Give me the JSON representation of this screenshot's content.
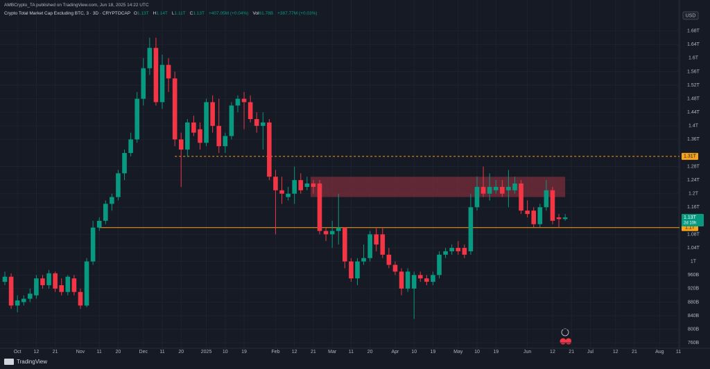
{
  "header": {
    "publisher": "AMBCrypto_TA published on TradingView.com, Jun 18, 2025 14:22 UTC",
    "symbol": "Crypto Total Market Cap Excluding BTC, 3 · 3D · CRYPTOCAP",
    "legend": [
      {
        "label": "O",
        "value": "1.13T"
      },
      {
        "label": "H",
        "value": "1.14T"
      },
      {
        "label": "L",
        "value": "1.11T"
      },
      {
        "label": "C",
        "value": "1.13T"
      },
      {
        "label": "",
        "value": "+407.05M (+0.04%)"
      },
      {
        "label": "Vol",
        "value": "61.78B"
      },
      {
        "label": "",
        "value": "+387.77M (+0.03%)"
      }
    ],
    "currency": "USD"
  },
  "footer": {
    "brand": "TradingView"
  },
  "chart_data": {
    "type": "candlestick",
    "up_color": "#089981",
    "down_color": "#f23645",
    "grid": true,
    "ylim": [
      0.744,
      1.755
    ],
    "yticks": [
      {
        "value": 1.68,
        "label": "1.68T"
      },
      {
        "value": 1.64,
        "label": "1.64T"
      },
      {
        "value": 1.6,
        "label": "1.6T"
      },
      {
        "value": 1.56,
        "label": "1.56T"
      },
      {
        "value": 1.52,
        "label": "1.52T"
      },
      {
        "value": 1.48,
        "label": "1.48T"
      },
      {
        "value": 1.44,
        "label": "1.44T"
      },
      {
        "value": 1.4,
        "label": "1.4T"
      },
      {
        "value": 1.36,
        "label": "1.36T"
      },
      {
        "value": 1.28,
        "label": "1.28T"
      },
      {
        "value": 1.24,
        "label": "1.24T"
      },
      {
        "value": 1.2,
        "label": "1.2T"
      },
      {
        "value": 1.16,
        "label": "1.16T"
      },
      {
        "value": 1.08,
        "label": "1.08T"
      },
      {
        "value": 1.04,
        "label": "1.04T"
      },
      {
        "value": 1,
        "label": "1T"
      },
      {
        "value": 0.96,
        "label": "960B"
      },
      {
        "value": 0.92,
        "label": "920B"
      },
      {
        "value": 0.88,
        "label": "880B"
      },
      {
        "value": 0.84,
        "label": "840B"
      },
      {
        "value": 0.8,
        "label": "800B"
      },
      {
        "value": 0.76,
        "label": "760B"
      }
    ],
    "categories": [
      null,
      null,
      "Oct",
      null,
      null,
      "12",
      null,
      null,
      "21",
      null,
      null,
      null,
      "Nov",
      null,
      null,
      "11",
      null,
      null,
      "20",
      null,
      null,
      null,
      "Dec",
      null,
      null,
      "11",
      null,
      null,
      "20",
      null,
      null,
      null,
      "2025",
      null,
      null,
      "10",
      null,
      null,
      "19",
      null,
      null,
      null,
      null,
      "Feb",
      null,
      null,
      "12",
      null,
      null,
      "21",
      null,
      null,
      "Mar",
      null,
      null,
      "11",
      null,
      null,
      "20",
      null,
      null,
      null,
      "Apr",
      null,
      null,
      "10",
      null,
      null,
      "19",
      null,
      null,
      null,
      "May",
      null,
      null,
      "10",
      null,
      null,
      "19",
      null,
      null,
      null,
      null,
      "Jun",
      null,
      null,
      null,
      "12",
      null,
      null,
      "21",
      null,
      null,
      "Jul",
      null,
      null,
      null,
      "12",
      null,
      null,
      "21",
      null,
      null,
      null,
      "Aug",
      null,
      null,
      "11"
    ],
    "open": [
      0.94,
      0.955,
      0.87,
      0.88,
      0.89,
      0.9,
      0.95,
      0.93,
      0.965,
      0.93,
      0.91,
      0.95,
      0.91,
      0.87,
      1.0,
      1.1,
      1.12,
      1.17,
      1.19,
      1.26,
      1.32,
      1.36,
      1.48,
      1.57,
      1.63,
      1.47,
      1.58,
      1.54,
      1.36,
      1.33,
      1.41,
      1.39,
      1.35,
      1.47,
      1.4,
      1.34,
      1.37,
      1.46,
      1.48,
      1.47,
      1.42,
      1.4,
      1.41,
      1.25,
      1.21,
      1.19,
      1.2,
      1.24,
      1.22,
      1.23,
      1.23,
      1.09,
      1.08,
      1.09,
      1.1,
      1.0,
      0.95,
      1.0,
      1.01,
      1.08,
      1.08,
      1.02,
      0.99,
      0.97,
      0.92,
      0.92,
      0.96,
      0.95,
      0.94,
      0.96,
      1.02,
      1.03,
      1.04,
      1.04,
      1.03,
      1.16,
      1.22,
      1.2,
      1.21,
      1.22,
      1.21,
      1.21,
      1.23,
      1.15,
      1.15,
      1.11,
      1.16,
      1.21,
      1.13,
      1.125,
      null,
      null,
      null,
      null,
      null,
      null,
      null,
      null,
      null,
      null,
      null,
      null,
      null,
      null,
      null,
      null,
      null,
      null
    ],
    "high": [
      0.97,
      0.965,
      0.9,
      0.9,
      0.92,
      0.96,
      0.96,
      0.975,
      0.97,
      0.95,
      0.96,
      0.96,
      0.92,
      1.01,
      1.12,
      1.13,
      1.18,
      1.2,
      1.27,
      1.33,
      1.38,
      1.5,
      1.6,
      1.66,
      1.66,
      1.61,
      1.6,
      1.56,
      1.38,
      1.42,
      1.43,
      1.41,
      1.48,
      1.49,
      1.48,
      1.38,
      1.47,
      1.49,
      1.5,
      1.49,
      1.44,
      1.44,
      1.42,
      1.27,
      1.25,
      1.22,
      1.28,
      1.26,
      1.25,
      1.24,
      1.24,
      1.1,
      1.12,
      1.2,
      1.1,
      1.01,
      1.01,
      1.05,
      1.09,
      1.1,
      1.1,
      1.04,
      1.0,
      0.98,
      0.98,
      0.97,
      0.97,
      0.96,
      0.97,
      1.03,
      1.04,
      1.05,
      1.06,
      1.05,
      1.2,
      1.25,
      1.28,
      1.26,
      1.24,
      1.24,
      1.27,
      1.25,
      1.24,
      1.18,
      1.16,
      1.17,
      1.24,
      1.22,
      1.14,
      1.14,
      null,
      null,
      null,
      null,
      null,
      null,
      null,
      null,
      null,
      null,
      null,
      null,
      null,
      null,
      null,
      null,
      null,
      null
    ],
    "low": [
      0.93,
      0.86,
      0.85,
      0.87,
      0.88,
      0.89,
      0.92,
      0.92,
      0.91,
      0.9,
      0.9,
      0.9,
      0.86,
      0.865,
      0.99,
      1.09,
      1.11,
      1.15,
      1.18,
      1.24,
      1.31,
      1.35,
      1.46,
      1.55,
      1.46,
      1.45,
      1.5,
      1.34,
      1.22,
      1.31,
      1.37,
      1.33,
      1.34,
      1.38,
      1.32,
      1.32,
      1.36,
      1.44,
      1.39,
      1.41,
      1.38,
      1.33,
      1.24,
      1.08,
      1.17,
      1.18,
      1.17,
      1.2,
      1.21,
      1.2,
      1.08,
      1.06,
      1.04,
      1.05,
      0.98,
      0.94,
      0.93,
      0.99,
      1.0,
      1.03,
      1.01,
      0.98,
      0.96,
      0.9,
      0.91,
      0.83,
      0.94,
      0.93,
      0.93,
      0.95,
      1.01,
      1.02,
      1.02,
      1.01,
      1.02,
      1.15,
      1.19,
      1.18,
      1.2,
      1.19,
      1.16,
      1.2,
      1.14,
      1.13,
      1.1,
      1.1,
      1.15,
      1.11,
      1.1,
      1.12,
      null,
      null,
      null,
      null,
      null,
      null,
      null,
      null,
      null,
      null,
      null,
      null,
      null,
      null,
      null,
      null,
      null,
      null
    ],
    "close": [
      0.955,
      0.87,
      0.885,
      0.89,
      0.905,
      0.95,
      0.93,
      0.965,
      0.92,
      0.91,
      0.955,
      0.91,
      0.87,
      1.0,
      1.1,
      1.12,
      1.17,
      1.19,
      1.26,
      1.32,
      1.36,
      1.48,
      1.57,
      1.63,
      1.47,
      1.58,
      1.54,
      1.36,
      1.33,
      1.41,
      1.38,
      1.35,
      1.47,
      1.4,
      1.34,
      1.37,
      1.46,
      1.48,
      1.47,
      1.42,
      1.4,
      1.41,
      1.25,
      1.21,
      1.2,
      1.2,
      1.24,
      1.21,
      1.23,
      1.22,
      1.09,
      1.08,
      1.09,
      1.1,
      1.0,
      0.95,
      1.0,
      1.01,
      1.08,
      1.05,
      1.02,
      0.99,
      0.97,
      0.92,
      0.97,
      0.96,
      0.95,
      0.94,
      0.96,
      1.02,
      1.03,
      1.04,
      1.03,
      1.02,
      1.16,
      1.22,
      1.2,
      1.22,
      1.22,
      1.2,
      1.22,
      1.23,
      1.15,
      1.14,
      1.11,
      1.16,
      1.21,
      1.12,
      1.125,
      1.13,
      null,
      null,
      null,
      null,
      null,
      null,
      null,
      null,
      null,
      null,
      null,
      null,
      null,
      null,
      null,
      null,
      null,
      null
    ],
    "zone": {
      "top": 1.25,
      "bottom": 1.19,
      "color": "#7a2d3a"
    },
    "levels": [
      {
        "value": 1.31,
        "label": "1.31T",
        "style": "dashed",
        "color": "#f7a21b"
      },
      {
        "value": 1.1,
        "label": "1.1T",
        "style": "solid",
        "color": "#f7a21b"
      }
    ],
    "last": {
      "value": 1.13,
      "label": "1.13T",
      "countdown": "2d 10h"
    }
  }
}
